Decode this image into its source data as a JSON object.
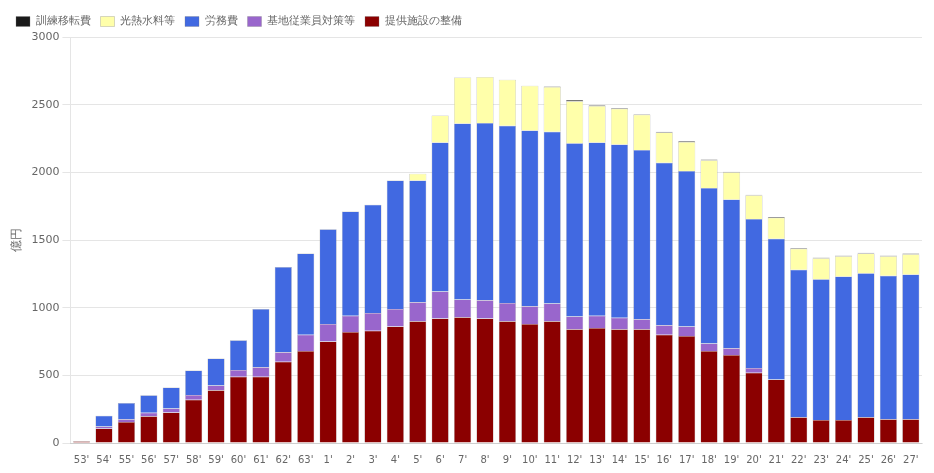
{
  "chart_data": {
    "type": "bar",
    "stacked": true,
    "ylabel": "億円",
    "categories": [
      "53'",
      "54'",
      "55'",
      "56'",
      "57'",
      "58'",
      "59'",
      "60'",
      "61'",
      "62'",
      "63'",
      "1'",
      "2'",
      "3'",
      "4'",
      "5'",
      "6'",
      "7'",
      "8'",
      "9'",
      "10'",
      "11'",
      "12'",
      "13'",
      "14'",
      "15'",
      "16'",
      "17'",
      "18'",
      "19'",
      "20'",
      "21'",
      "22'",
      "23'",
      "24'",
      "25'",
      "26'",
      "27'"
    ],
    "series": [
      {
        "name": "提供施設の整備",
        "color": "#8B0000",
        "values": [
          13,
          107,
          155,
          198,
          225,
          320,
          390,
          490,
          490,
          600,
          680,
          750,
          820,
          830,
          860,
          900,
          920,
          930,
          920,
          900,
          880,
          900,
          840,
          850,
          840,
          840,
          800,
          790,
          680,
          650,
          520,
          470,
          190,
          170,
          170,
          190,
          175,
          175
        ]
      },
      {
        "name": "基地従業員対策等",
        "color": "#9966CC",
        "values": [
          0,
          15,
          20,
          25,
          30,
          35,
          35,
          50,
          70,
          70,
          120,
          130,
          120,
          130,
          130,
          140,
          200,
          130,
          135,
          135,
          130,
          130,
          95,
          90,
          85,
          75,
          70,
          70,
          55,
          50,
          35,
          0,
          0,
          0,
          0,
          0,
          0,
          0
        ]
      },
      {
        "name": "労務費",
        "color": "#4169E1",
        "values": [
          0,
          80,
          120,
          130,
          155,
          180,
          200,
          220,
          430,
          630,
          600,
          700,
          770,
          800,
          950,
          900,
          1100,
          1300,
          1310,
          1310,
          1300,
          1270,
          1280,
          1280,
          1280,
          1250,
          1200,
          1150,
          1150,
          1100,
          1100,
          1040,
          1090,
          1040,
          1060,
          1065,
          1060,
          1070
        ]
      },
      {
        "name": "光熱水料等",
        "color": "#FFFFAA",
        "values": [
          0,
          0,
          0,
          0,
          0,
          0,
          0,
          0,
          0,
          0,
          0,
          0,
          0,
          0,
          0,
          50,
          200,
          340,
          340,
          340,
          330,
          330,
          310,
          270,
          265,
          260,
          225,
          215,
          205,
          200,
          175,
          155,
          155,
          155,
          150,
          145,
          145,
          150
        ]
      },
      {
        "name": "訓練移転費",
        "color": "#1a1a1a",
        "values": [
          0,
          0,
          0,
          0,
          0,
          0,
          0,
          0,
          0,
          0,
          0,
          0,
          0,
          0,
          0,
          0,
          0,
          0,
          0,
          0,
          0,
          5,
          10,
          5,
          5,
          5,
          5,
          5,
          5,
          5,
          5,
          5,
          5,
          5,
          5,
          5,
          5,
          5
        ]
      }
    ],
    "ylim": [
      0,
      3000
    ],
    "yticks": [
      0,
      500,
      1000,
      1500,
      2000,
      2500,
      3000
    ],
    "grid": true,
    "legend": "upper left"
  }
}
